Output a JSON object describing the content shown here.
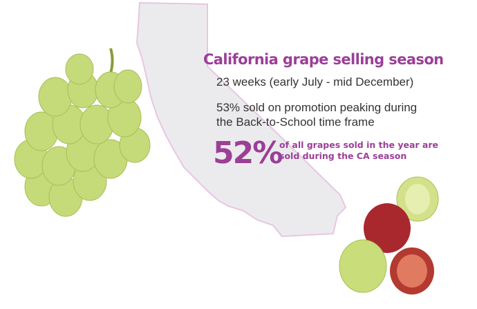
{
  "heading": "California grape selling season",
  "facts": [
    "23 weeks (early July - mid December)",
    "53% sold on promotion peaking during",
    "the Back-to-School time frame"
  ],
  "highlight": {
    "value": "52%",
    "text_line1": "of all grapes sold in the year are",
    "text_line2": "sold during the CA season"
  },
  "colors": {
    "accent": "#9b3f97",
    "text": "#333333",
    "state_fill": "#ebebed",
    "grape_green": "#c9dd7a",
    "grape_red": "#a8282e"
  }
}
